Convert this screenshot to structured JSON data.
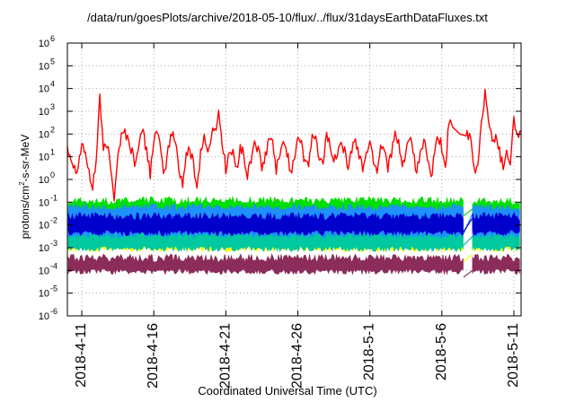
{
  "chart_data": {
    "type": "line",
    "title": "/data/run/goesPlots/archive/2018-05-10/flux/../flux/31daysEarthDataFluxes.txt",
    "xlabel": "Coordinated Universal Time (UTC)",
    "ylabel_base": "protons/cm",
    "ylabel_sup": "2",
    "ylabel_rest": "-s-sr-MeV",
    "y_scale": "log",
    "ylim": [
      1e-06,
      1000000.0
    ],
    "y_ticks": [
      {
        "value": -6,
        "label": "10",
        "exp": "-6"
      },
      {
        "value": -5,
        "label": "10",
        "exp": "-5"
      },
      {
        "value": -4,
        "label": "10",
        "exp": "-4"
      },
      {
        "value": -3,
        "label": "10",
        "exp": "-3"
      },
      {
        "value": -2,
        "label": "10",
        "exp": "-2"
      },
      {
        "value": -1,
        "label": "10",
        "exp": "-1"
      },
      {
        "value": 0,
        "label": "10",
        "exp": "0"
      },
      {
        "value": 1,
        "label": "10",
        "exp": "1"
      },
      {
        "value": 2,
        "label": "10",
        "exp": "2"
      },
      {
        "value": 3,
        "label": "10",
        "exp": "3"
      },
      {
        "value": 4,
        "label": "10",
        "exp": "4"
      },
      {
        "value": 5,
        "label": "10",
        "exp": "5"
      },
      {
        "value": 6,
        "label": "10",
        "exp": "6"
      }
    ],
    "xlim": [
      "2018-04-10",
      "2018-05-11"
    ],
    "x_ticks": [
      "2018-4-11",
      "2018-4-16",
      "2018-4-21",
      "2018-4-26",
      "2018-5-1",
      "2018-5-6",
      "2018-5-11"
    ],
    "grid": true,
    "series": [
      {
        "color": "#8b2c5a",
        "band": [
          0.0001,
          0.0003
        ],
        "dropout": [
          -4.3,
          -4.0
        ]
      },
      {
        "color": "#ffff00",
        "band": [
          0.001,
          0.003
        ],
        "dropout": [
          -3.6,
          -3.3
        ]
      },
      {
        "color": "#00c8a0",
        "band": [
          0.001,
          0.008
        ],
        "dropout": [
          -2.9,
          -2.5
        ]
      },
      {
        "color": "#00e000",
        "band": [
          0.03,
          0.1
        ],
        "dropout": [
          -1.6,
          -1.3
        ]
      },
      {
        "color": "#1e90ff",
        "band": [
          0.004,
          0.05
        ],
        "dropout": [
          -2.4,
          -1.5
        ]
      },
      {
        "color": "#0000cc",
        "band": [
          0.005,
          0.02
        ],
        "dropout": [
          -2.3,
          -1.7
        ]
      },
      {
        "color": "#ff0000",
        "points": [
          [
            "2018-04-10T00:00",
            1.5
          ],
          [
            "2018-04-10T06:00",
            1.0
          ],
          [
            "2018-04-10T12:00",
            0.5
          ],
          [
            "2018-04-10T18:00",
            0.6
          ],
          [
            "2018-04-11T00:00",
            1.6
          ],
          [
            "2018-04-11T06:00",
            1.2
          ],
          [
            "2018-04-11T12:00",
            0.2
          ],
          [
            "2018-04-11T18:00",
            -0.3
          ],
          [
            "2018-04-12T00:00",
            0.8
          ],
          [
            "2018-04-12T06:00",
            3.7
          ],
          [
            "2018-04-12T12:00",
            1.2
          ],
          [
            "2018-04-12T18:00",
            1.6
          ],
          [
            "2018-04-13T00:00",
            0.5
          ],
          [
            "2018-04-13T06:00",
            -0.7
          ],
          [
            "2018-04-13T12:00",
            1.1
          ],
          [
            "2018-04-13T18:00",
            1.9
          ],
          [
            "2018-04-14T00:00",
            2.1
          ],
          [
            "2018-04-14T06:00",
            1.7
          ],
          [
            "2018-04-14T12:00",
            1.2
          ],
          [
            "2018-04-14T18:00",
            0.6
          ],
          [
            "2018-04-15T00:00",
            1.9
          ],
          [
            "2018-04-15T06:00",
            2.0
          ],
          [
            "2018-04-15T12:00",
            1.3
          ],
          [
            "2018-04-15T18:00",
            0.3
          ],
          [
            "2018-04-16T00:00",
            1.8
          ],
          [
            "2018-04-16T06:00",
            2.0
          ],
          [
            "2018-04-16T12:00",
            1.1
          ],
          [
            "2018-04-16T18:00",
            0.2
          ],
          [
            "2018-04-17T00:00",
            1.4
          ],
          [
            "2018-04-17T06:00",
            2.0
          ],
          [
            "2018-04-17T12:00",
            1.7
          ],
          [
            "2018-04-17T18:00",
            0.5
          ],
          [
            "2018-04-18T00:00",
            -0.2
          ],
          [
            "2018-04-18T06:00",
            1.0
          ],
          [
            "2018-04-18T12:00",
            1.3
          ],
          [
            "2018-04-18T18:00",
            0.8
          ],
          [
            "2018-04-19T00:00",
            -0.4
          ],
          [
            "2018-04-19T06:00",
            1.2
          ],
          [
            "2018-04-19T12:00",
            1.9
          ],
          [
            "2018-04-19T18:00",
            1.1
          ],
          [
            "2018-04-20T00:00",
            2.0
          ],
          [
            "2018-04-20T06:00",
            2.1
          ],
          [
            "2018-04-20T12:00",
            3.0
          ],
          [
            "2018-04-20T18:00",
            1.6
          ],
          [
            "2018-04-21T00:00",
            0.5
          ],
          [
            "2018-04-21T06:00",
            1.2
          ],
          [
            "2018-04-21T12:00",
            1.1
          ],
          [
            "2018-04-21T18:00",
            0.4
          ],
          [
            "2018-04-22T00:00",
            1.5
          ],
          [
            "2018-04-22T06:00",
            1.0
          ],
          [
            "2018-04-22T12:00",
            0.1
          ],
          [
            "2018-04-22T18:00",
            0.9
          ],
          [
            "2018-04-23T00:00",
            1.7
          ],
          [
            "2018-04-23T06:00",
            1.3
          ],
          [
            "2018-04-23T12:00",
            0.4
          ],
          [
            "2018-04-23T18:00",
            1.0
          ],
          [
            "2018-04-24T00:00",
            1.8
          ],
          [
            "2018-04-24T06:00",
            1.6
          ],
          [
            "2018-04-24T12:00",
            0.5
          ],
          [
            "2018-04-24T18:00",
            0.9
          ],
          [
            "2018-04-25T00:00",
            1.8
          ],
          [
            "2018-04-25T06:00",
            1.2
          ],
          [
            "2018-04-25T12:00",
            0.3
          ],
          [
            "2018-04-25T18:00",
            1.0
          ],
          [
            "2018-04-26T00:00",
            1.9
          ],
          [
            "2018-04-26T06:00",
            1.7
          ],
          [
            "2018-04-26T12:00",
            0.6
          ],
          [
            "2018-04-26T18:00",
            0.7
          ],
          [
            "2018-04-27T00:00",
            1.9
          ],
          [
            "2018-04-27T06:00",
            1.8
          ],
          [
            "2018-04-27T12:00",
            0.7
          ],
          [
            "2018-04-27T18:00",
            0.8
          ],
          [
            "2018-04-28T00:00",
            2.0
          ],
          [
            "2018-04-28T06:00",
            1.5
          ],
          [
            "2018-04-28T12:00",
            0.7
          ],
          [
            "2018-04-28T18:00",
            1.3
          ],
          [
            "2018-04-29T00:00",
            1.9
          ],
          [
            "2018-04-29T06:00",
            1.2
          ],
          [
            "2018-04-29T12:00",
            0.6
          ],
          [
            "2018-04-29T18:00",
            1.3
          ],
          [
            "2018-04-30T00:00",
            1.8
          ],
          [
            "2018-04-30T06:00",
            1.0
          ],
          [
            "2018-04-30T12:00",
            0.5
          ],
          [
            "2018-04-30T18:00",
            1.2
          ],
          [
            "2018-05-01T00:00",
            1.6
          ],
          [
            "2018-05-01T06:00",
            0.9
          ],
          [
            "2018-05-01T12:00",
            0.4
          ],
          [
            "2018-05-01T18:00",
            1.5
          ],
          [
            "2018-05-02T00:00",
            1.4
          ],
          [
            "2018-05-02T06:00",
            0.6
          ],
          [
            "2018-05-02T12:00",
            1.2
          ],
          [
            "2018-05-02T18:00",
            1.9
          ],
          [
            "2018-05-03T00:00",
            1.5
          ],
          [
            "2018-05-03T06:00",
            0.5
          ],
          [
            "2018-05-03T12:00",
            1.3
          ],
          [
            "2018-05-03T18:00",
            1.8
          ],
          [
            "2018-05-04T00:00",
            1.2
          ],
          [
            "2018-05-04T06:00",
            0.2
          ],
          [
            "2018-05-04T12:00",
            1.2
          ],
          [
            "2018-05-04T18:00",
            1.7
          ],
          [
            "2018-05-05T00:00",
            1.0
          ],
          [
            "2018-05-05T06:00",
            0.0
          ],
          [
            "2018-05-05T12:00",
            1.1
          ],
          [
            "2018-05-05T18:00",
            1.9
          ],
          [
            "2018-05-06T00:00",
            1.4
          ],
          [
            "2018-05-06T06:00",
            0.5
          ],
          [
            "2018-05-06T12:00",
            2.7
          ],
          [
            "2018-05-06T18:00",
            2.3
          ],
          [
            "2018-05-07T06:00",
            2.0
          ],
          [
            "2018-05-07T18:00",
            1.9
          ],
          [
            "2018-05-08T00:00",
            1.7
          ],
          [
            "2018-05-08T06:00",
            0.3
          ],
          [
            "2018-05-08T12:00",
            0.6
          ],
          [
            "2018-05-08T18:00",
            2.6
          ],
          [
            "2018-05-09T00:00",
            3.8
          ],
          [
            "2018-05-09T06:00",
            2.7
          ],
          [
            "2018-05-09T12:00",
            1.5
          ],
          [
            "2018-05-09T18:00",
            2.1
          ],
          [
            "2018-05-10T00:00",
            1.2
          ],
          [
            "2018-05-10T06:00",
            0.6
          ],
          [
            "2018-05-10T12:00",
            1.3
          ],
          [
            "2018-05-10T18:00",
            0.8
          ],
          [
            "2018-05-11T00:00",
            2.6
          ],
          [
            "2018-05-11T06:00",
            1.9
          ],
          [
            "2018-05-11T12:00",
            2.1
          ]
        ]
      }
    ]
  }
}
